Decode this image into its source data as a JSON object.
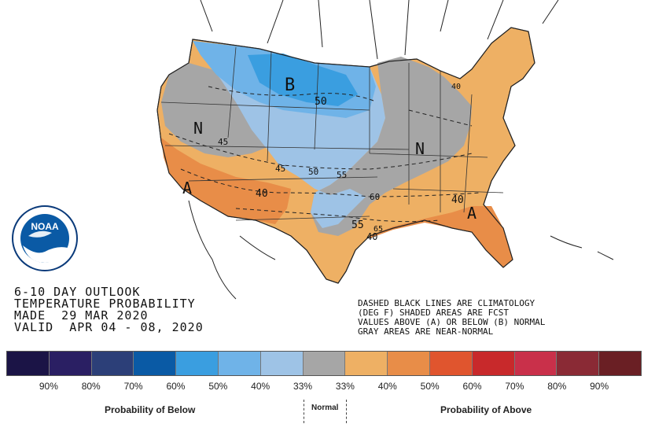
{
  "title": {
    "line1": "6-10 DAY OUTLOOK",
    "line2": "TEMPERATURE PROBABILITY",
    "line3": "MADE  29 MAR 2020",
    "line4": "VALID  APR 04 - 08, 2020"
  },
  "notes": {
    "line1": "DASHED BLACK LINES ARE CLIMATOLOGY",
    "line2": "(DEG F) SHADED AREAS ARE FCST",
    "line3": "VALUES ABOVE (A) OR BELOW (B) NORMAL",
    "line4": "GRAY AREAS ARE NEAR-NORMAL"
  },
  "logo": {
    "text": "NOAA",
    "icon": "noaa-logo-icon"
  },
  "map_labels": {
    "below_marker": "B",
    "above_marker_west": "A",
    "above_marker_east": "A",
    "normal_marker_west": "N",
    "normal_marker_east": "N",
    "contour_50": "50",
    "contour_45_west": "45",
    "contour_45_mid": "45",
    "contour_50_mid": "50",
    "contour_55": "55",
    "contour_40_west": "40",
    "contour_60": "60",
    "contour_55_south": "55",
    "contour_65": "65",
    "contour_40_south": "40",
    "contour_40_east": "40",
    "contour_40_north": "40"
  },
  "legend": {
    "colors": [
      "#1b1446",
      "#2a1f63",
      "#2c3f78",
      "#0a5aa5",
      "#3a9ee0",
      "#6fb3e8",
      "#9ec3e6",
      "#a6a6a6",
      "#eeb064",
      "#e88d48",
      "#e0552e",
      "#c8292b",
      "#c9304a",
      "#8a2a35",
      "#6a1f24"
    ],
    "ticks": [
      "90%",
      "80%",
      "70%",
      "60%",
      "50%",
      "40%",
      "33%",
      "33%",
      "40%",
      "50%",
      "60%",
      "70%",
      "80%",
      "90%"
    ],
    "below_label": "Probability of Below",
    "normal_label": "Normal",
    "above_label": "Probability of Above"
  },
  "colors": {
    "below_light": "#9ec3e6",
    "below_mid": "#6fb3e8",
    "below_strong": "#3a9ee0",
    "normal": "#a6a6a6",
    "above_light": "#eeb064",
    "above_mid": "#e88d48"
  }
}
